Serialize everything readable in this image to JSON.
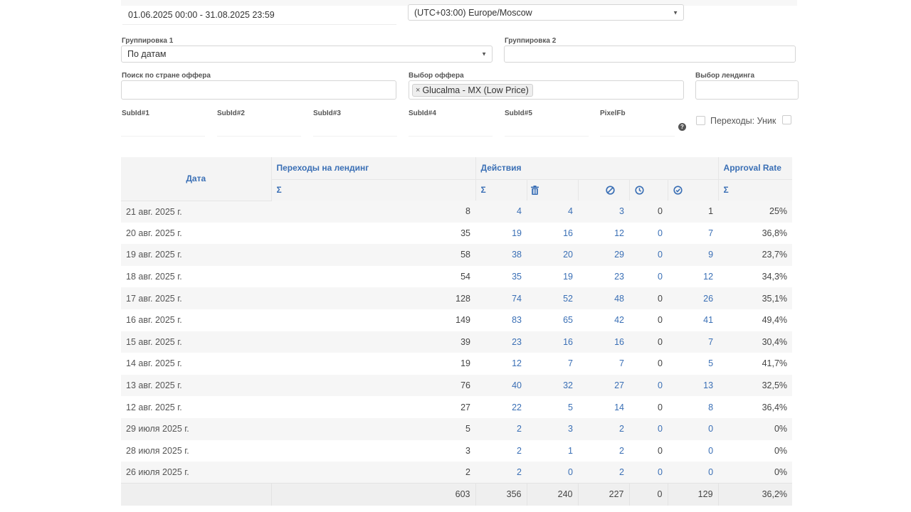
{
  "filters": {
    "date_range": "01.06.2025 00:00 - 31.08.2025 23:59",
    "timezone": "(UTC+03:00) Europe/Moscow",
    "grouping1_label": "Группировка 1",
    "grouping1_value": "По датам",
    "grouping2_label": "Группировка 2",
    "grouping2_value": "",
    "country_search_label": "Поиск по стране оффера",
    "offer_label": "Выбор оффера",
    "offer_tag": "Glucalma - MX (Low Price)",
    "landing_label": "Выбор лендинга",
    "subids": [
      "SubId#1",
      "SubId#2",
      "SubId#3",
      "SubId#4",
      "SubId#5",
      "PixelFb"
    ],
    "unique_checkbox_label": "Переходы: Уник",
    "help_symbol": "?"
  },
  "table": {
    "headers": {
      "date": "Дата",
      "landing_clicks": "Переходы на лендинг",
      "actions": "Действия",
      "approval_rate": "Approval Rate",
      "sigma": "Σ"
    },
    "icons": [
      "trash-icon",
      "ban-icon",
      "clock-icon",
      "check-circle-icon"
    ],
    "link_color": "#3a6fb5",
    "rows": [
      {
        "date": "21 авг. 2025 г.",
        "clicks": "8",
        "total": "4",
        "trash": "4",
        "rejected": "3",
        "pending": "0",
        "approved": "1",
        "rate": "25%"
      },
      {
        "date": "20 авг. 2025 г.",
        "clicks": "35",
        "total": "19",
        "trash": "16",
        "rejected": "12",
        "pending": "0",
        "approved": "7",
        "rate": "36,8%"
      },
      {
        "date": "19 авг. 2025 г.",
        "clicks": "58",
        "total": "38",
        "trash": "20",
        "rejected": "29",
        "pending": "0",
        "approved": "9",
        "rate": "23,7%"
      },
      {
        "date": "18 авг. 2025 г.",
        "clicks": "54",
        "total": "35",
        "trash": "19",
        "rejected": "23",
        "pending": "0",
        "approved": "12",
        "rate": "34,3%"
      },
      {
        "date": "17 авг. 2025 г.",
        "clicks": "128",
        "total": "74",
        "trash": "52",
        "rejected": "48",
        "pending": "0",
        "approved": "26",
        "rate": "35,1%"
      },
      {
        "date": "16 авг. 2025 г.",
        "clicks": "149",
        "total": "83",
        "trash": "65",
        "rejected": "42",
        "pending": "0",
        "approved": "41",
        "rate": "49,4%"
      },
      {
        "date": "15 авг. 2025 г.",
        "clicks": "39",
        "total": "23",
        "trash": "16",
        "rejected": "16",
        "pending": "0",
        "approved": "7",
        "rate": "30,4%"
      },
      {
        "date": "14 авг. 2025 г.",
        "clicks": "19",
        "total": "12",
        "trash": "7",
        "rejected": "7",
        "pending": "0",
        "approved": "5",
        "rate": "41,7%"
      },
      {
        "date": "13 авг. 2025 г.",
        "clicks": "76",
        "total": "40",
        "trash": "32",
        "rejected": "27",
        "pending": "0",
        "approved": "13",
        "rate": "32,5%"
      },
      {
        "date": "12 авг. 2025 г.",
        "clicks": "27",
        "total": "22",
        "trash": "5",
        "rejected": "14",
        "pending": "0",
        "approved": "8",
        "rate": "36,4%"
      },
      {
        "date": "29 июля 2025 г.",
        "clicks": "5",
        "total": "2",
        "trash": "3",
        "rejected": "2",
        "pending": "0",
        "approved": "0",
        "rate": "0%"
      },
      {
        "date": "28 июля 2025 г.",
        "clicks": "3",
        "total": "2",
        "trash": "1",
        "rejected": "2",
        "pending": "0",
        "approved": "0",
        "rate": "0%"
      },
      {
        "date": "26 июля 2025 г.",
        "clicks": "2",
        "total": "2",
        "trash": "0",
        "rejected": "2",
        "pending": "0",
        "approved": "0",
        "rate": "0%"
      }
    ],
    "totals": {
      "clicks": "603",
      "total": "356",
      "trash": "240",
      "rejected": "227",
      "pending": "0",
      "approved": "129",
      "rate": "36,2%"
    }
  }
}
